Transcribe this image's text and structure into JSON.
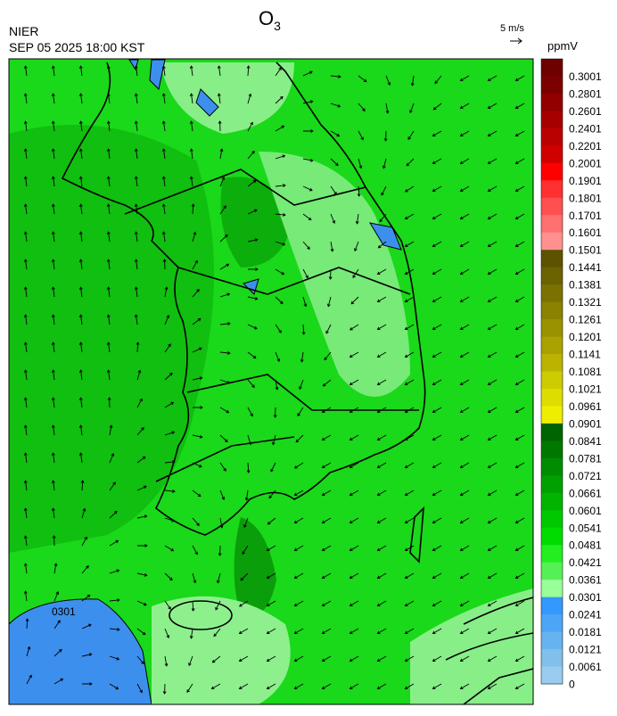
{
  "header": {
    "title": "O",
    "title_subscript": "3",
    "agency": "NIER",
    "timestamp": "SEP 05 2025 18:00 KST",
    "vector_scale": "5 m/s"
  },
  "map": {
    "contour_label": "0301"
  },
  "colorbar": {
    "unit": "ppmV",
    "labels": [
      0.3001,
      0.2801,
      0.2601,
      0.2401,
      0.2201,
      0.2001,
      0.1901,
      0.1801,
      0.1701,
      0.1601,
      0.1501,
      0.1441,
      0.1381,
      0.1321,
      0.1261,
      0.1201,
      0.1141,
      0.1081,
      0.1021,
      0.0961,
      0.0901,
      0.0841,
      0.0781,
      0.0721,
      0.0661,
      0.0601,
      0.0541,
      0.0481,
      0.0421,
      0.0361,
      0.0301,
      0.0241,
      0.0181,
      0.0121,
      0.0061,
      0
    ],
    "colors": [
      "#6e0000",
      "#7d0000",
      "#920000",
      "#a60000",
      "#bb0000",
      "#d00000",
      "#ff0000",
      "#ff3030",
      "#ff5050",
      "#ff7070",
      "#ff9090",
      "#5c5200",
      "#6b6200",
      "#7a7200",
      "#8a8200",
      "#9a9200",
      "#aaa200",
      "#bbb300",
      "#cccc00",
      "#dddd00",
      "#eeee00",
      "#006400",
      "#007800",
      "#008c00",
      "#00a000",
      "#00b400",
      "#00c800",
      "#00dc00",
      "#22ee22",
      "#55f055",
      "#99ff99",
      "#3399ff",
      "#4da6f5",
      "#66b3f0",
      "#80c0eb",
      "#99ccee"
    ]
  }
}
